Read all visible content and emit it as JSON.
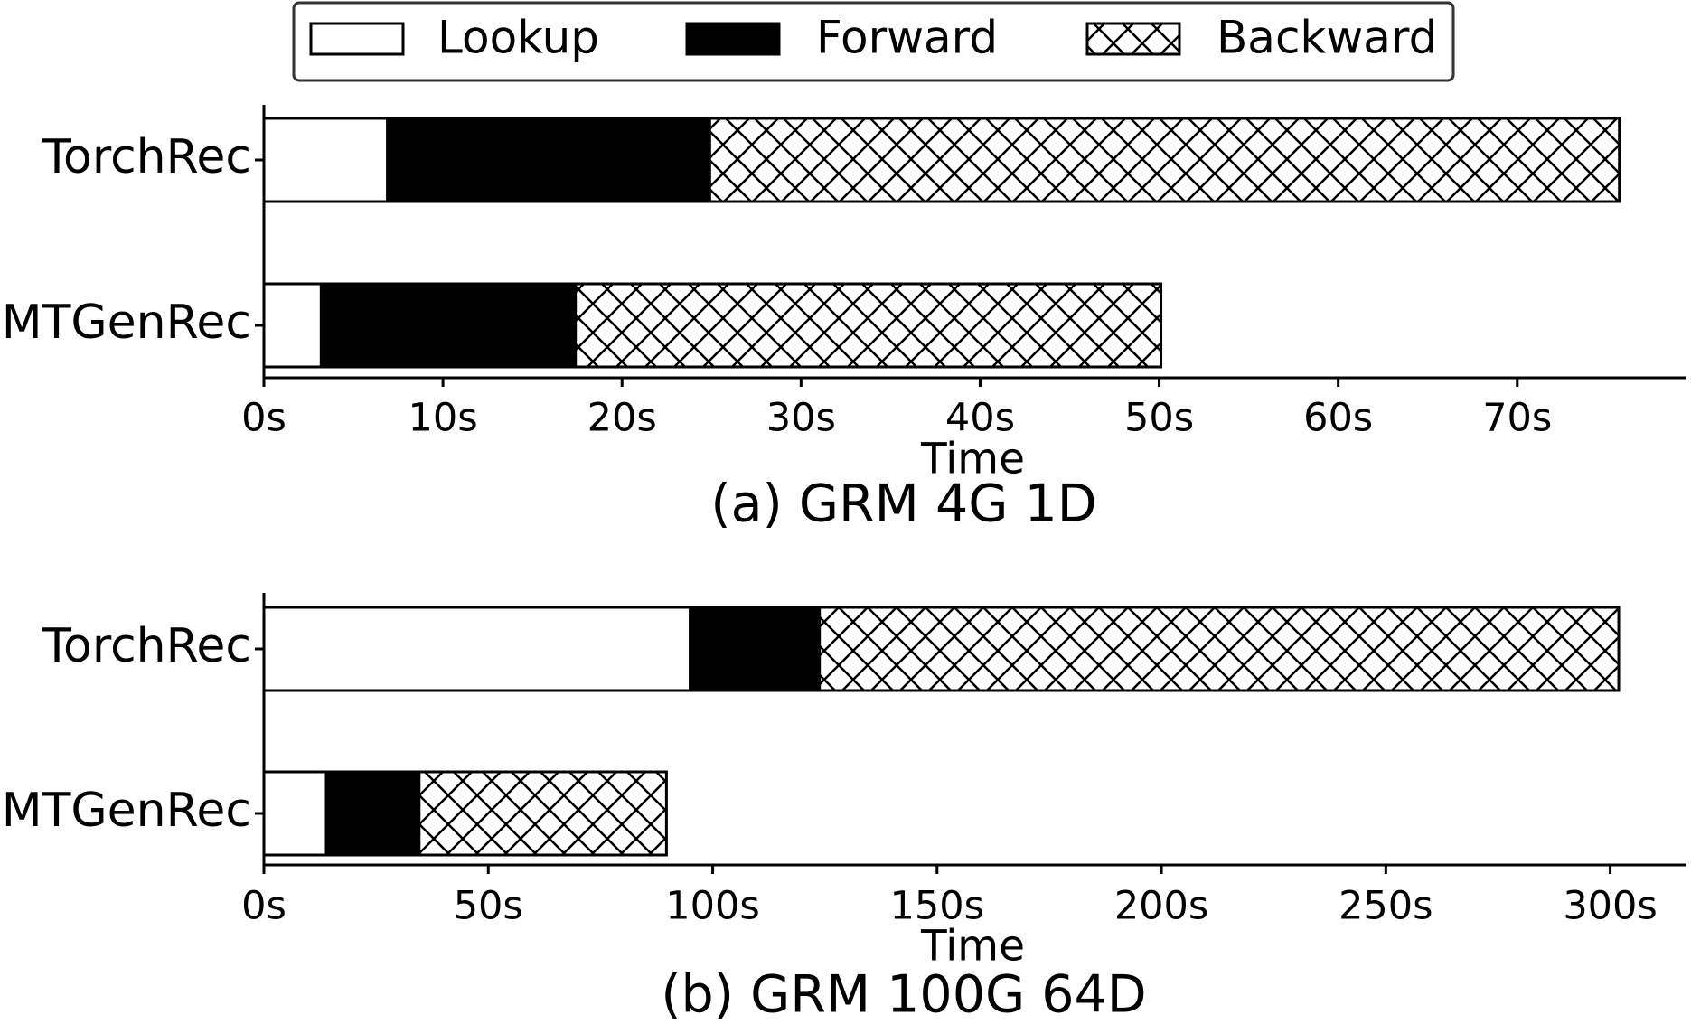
{
  "legend_position": "top",
  "chart_data": [
    {
      "type": "hbar_stacked",
      "title": "(a) GRM 4G 1D",
      "x_label": "Time",
      "categories": [
        "TorchRec",
        "MTGenRec"
      ],
      "series": [
        {
          "name": "Lookup",
          "color": "#ffffff",
          "hatch": "none",
          "values": [
            6.9,
            3.2
          ]
        },
        {
          "name": "Forward",
          "color": "#000000",
          "hatch": "none",
          "values": [
            18.0,
            14.2
          ]
        },
        {
          "name": "Backward",
          "color": "#ffffff",
          "hatch": "x",
          "values": [
            50.8,
            32.7
          ]
        }
      ],
      "xlim": [
        0,
        79.4
      ],
      "xticks": [
        {
          "value": 0,
          "label": "0s"
        },
        {
          "value": 10,
          "label": "10s"
        },
        {
          "value": 20,
          "label": "20s"
        },
        {
          "value": 30,
          "label": "30s"
        },
        {
          "value": 40,
          "label": "40s"
        },
        {
          "value": 50,
          "label": "50s"
        },
        {
          "value": 60,
          "label": "60s"
        },
        {
          "value": 70,
          "label": "70s"
        }
      ]
    },
    {
      "type": "hbar_stacked",
      "title": "(b) GRM 100G 64D",
      "x_label": "Time",
      "categories": [
        "TorchRec",
        "MTGenRec"
      ],
      "series": [
        {
          "name": "Lookup",
          "color": "#ffffff",
          "hatch": "none",
          "values": [
            95.0,
            13.9
          ]
        },
        {
          "name": "Forward",
          "color": "#000000",
          "hatch": "none",
          "values": [
            28.8,
            20.7
          ]
        },
        {
          "name": "Backward",
          "color": "#ffffff",
          "hatch": "x",
          "values": [
            178.1,
            55.1
          ]
        }
      ],
      "xlim": [
        0,
        316.8
      ],
      "xticks": [
        {
          "value": 0,
          "label": "0s"
        },
        {
          "value": 50,
          "label": "50s"
        },
        {
          "value": 100,
          "label": "100s"
        },
        {
          "value": 150,
          "label": "150s"
        },
        {
          "value": 200,
          "label": "200s"
        },
        {
          "value": 250,
          "label": "250s"
        },
        {
          "value": 300,
          "label": "300s"
        }
      ]
    }
  ]
}
